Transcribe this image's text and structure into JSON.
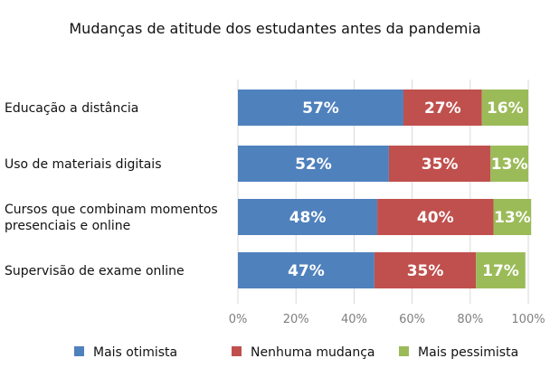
{
  "chart_data": {
    "type": "bar",
    "orientation": "horizontal",
    "stacked": "percent",
    "title": "Mudanças de atitude dos estudantes antes da pandemia",
    "categories": [
      [
        "Educação a distância"
      ],
      [
        "Uso de materiais digitais"
      ],
      [
        "Cursos que combinam momentos",
        "presenciais e online"
      ],
      [
        "Supervisão de exame online"
      ]
    ],
    "series": [
      {
        "name": "Mais otimista",
        "color": "#4f81bd",
        "values": [
          57,
          52,
          48,
          47
        ],
        "labels": [
          "57%",
          "52%",
          "48%",
          "47%"
        ]
      },
      {
        "name": "Nenhuma mudança",
        "color": "#c0504d",
        "values": [
          27,
          35,
          40,
          35
        ],
        "labels": [
          "27%",
          "35%",
          "40%",
          "35%"
        ]
      },
      {
        "name": "Mais pessimista",
        "color": "#9bbb59",
        "values": [
          16,
          13,
          13,
          17
        ],
        "labels": [
          "16%",
          "13%",
          "13%",
          "17%"
        ]
      }
    ],
    "xlim": [
      0,
      100
    ],
    "xticks": [
      "0%",
      "20%",
      "40%",
      "60%",
      "80%",
      "100%"
    ],
    "grid": true,
    "legend_position": "bottom"
  }
}
